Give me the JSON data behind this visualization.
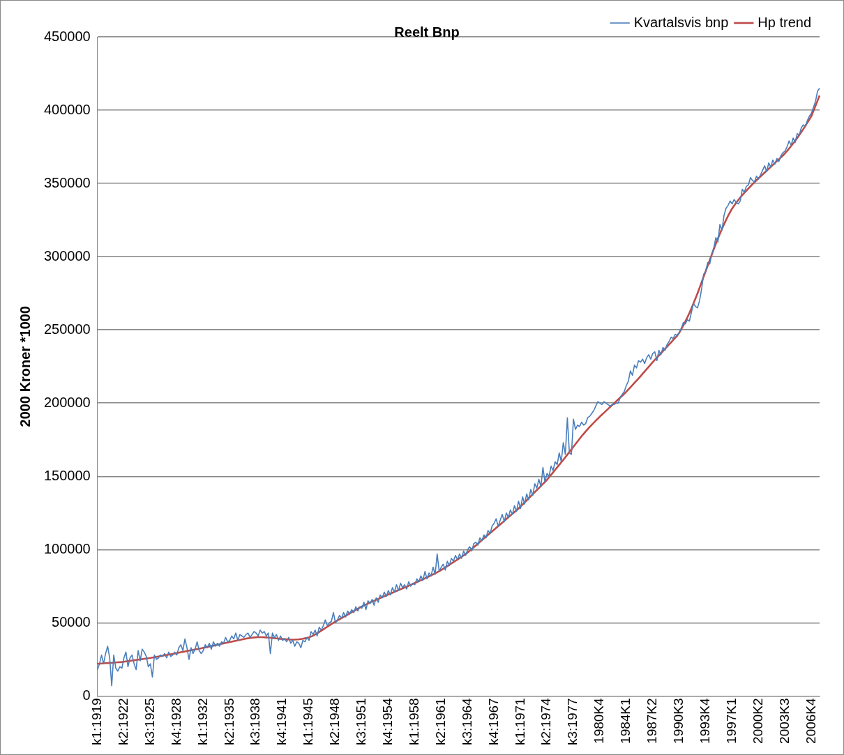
{
  "chart_data": {
    "type": "line",
    "title": "Reelt Bnp",
    "ylabel": "2000 Kroner *1000",
    "categories": [
      "k1:1919",
      null,
      null,
      null,
      null,
      null,
      null,
      null,
      null,
      null,
      null,
      null,
      null,
      "k2:1922",
      null,
      null,
      null,
      null,
      null,
      null,
      null,
      null,
      null,
      null,
      null,
      null,
      "k3:1925",
      null,
      null,
      null,
      null,
      null,
      null,
      null,
      null,
      null,
      null,
      null,
      null,
      "k4:1928",
      null,
      null,
      null,
      null,
      null,
      null,
      null,
      null,
      null,
      null,
      null,
      null,
      "k1:1932",
      null,
      null,
      null,
      null,
      null,
      null,
      null,
      null,
      null,
      null,
      null,
      null,
      "k2:1935",
      null,
      null,
      null,
      null,
      null,
      null,
      null,
      null,
      null,
      null,
      null,
      null,
      "k3:1938",
      null,
      null,
      null,
      null,
      null,
      null,
      null,
      null,
      null,
      null,
      null,
      null,
      "k4:1941",
      null,
      null,
      null,
      null,
      null,
      null,
      null,
      null,
      null,
      null,
      null,
      null,
      "k1:1945",
      null,
      null,
      null,
      null,
      null,
      null,
      null,
      null,
      null,
      null,
      null,
      null,
      "k2:1948",
      null,
      null,
      null,
      null,
      null,
      null,
      null,
      null,
      null,
      null,
      null,
      null,
      "k3:1951",
      null,
      null,
      null,
      null,
      null,
      null,
      null,
      null,
      null,
      null,
      null,
      null,
      "k4:1954",
      null,
      null,
      null,
      null,
      null,
      null,
      null,
      null,
      null,
      null,
      null,
      null,
      "k1:1958",
      null,
      null,
      null,
      null,
      null,
      null,
      null,
      null,
      null,
      null,
      null,
      null,
      "k2:1961",
      null,
      null,
      null,
      null,
      null,
      null,
      null,
      null,
      null,
      null,
      null,
      null,
      "k3:1964",
      null,
      null,
      null,
      null,
      null,
      null,
      null,
      null,
      null,
      null,
      null,
      null,
      "k4:1967",
      null,
      null,
      null,
      null,
      null,
      null,
      null,
      null,
      null,
      null,
      null,
      null,
      "k1:1971",
      null,
      null,
      null,
      null,
      null,
      null,
      null,
      null,
      null,
      null,
      null,
      null,
      "k2:1974",
      null,
      null,
      null,
      null,
      null,
      null,
      null,
      null,
      null,
      null,
      null,
      null,
      "k3:1977",
      null,
      null,
      null,
      null,
      null,
      null,
      null,
      null,
      null,
      null,
      null,
      null,
      "1980K4",
      null,
      null,
      null,
      null,
      null,
      null,
      null,
      null,
      null,
      null,
      null,
      null,
      "1984K1",
      null,
      null,
      null,
      null,
      null,
      null,
      null,
      null,
      null,
      null,
      null,
      null,
      "1987K2",
      null,
      null,
      null,
      null,
      null,
      null,
      null,
      null,
      null,
      null,
      null,
      null,
      "1990K3",
      null,
      null,
      null,
      null,
      null,
      null,
      null,
      null,
      null,
      null,
      null,
      null,
      "1993K4",
      null,
      null,
      null,
      null,
      null,
      null,
      null,
      null,
      null,
      null,
      null,
      null,
      "1997K1",
      null,
      null,
      null,
      null,
      null,
      null,
      null,
      null,
      null,
      null,
      null,
      null,
      "2000K2",
      null,
      null,
      null,
      null,
      null,
      null,
      null,
      null,
      null,
      null,
      null,
      null,
      "2003K3",
      null,
      null,
      null,
      null,
      null,
      null,
      null,
      null,
      null,
      null,
      null,
      null,
      "2006K4",
      null,
      null,
      null,
      null
    ],
    "series": [
      {
        "name": "Kvartalsvis bnp",
        "color": "#4a7ebb",
        "values": [
          18000,
          22000,
          28000,
          22000,
          29000,
          34000,
          26000,
          7000,
          28000,
          19000,
          17000,
          20000,
          19000,
          26000,
          30000,
          20000,
          26000,
          28000,
          22000,
          18000,
          31000,
          24000,
          32000,
          30000,
          27000,
          20000,
          22000,
          13000,
          28000,
          25000,
          26000,
          28000,
          27000,
          29000,
          26000,
          30000,
          27000,
          28000,
          30000,
          28000,
          33000,
          35000,
          31000,
          39000,
          33000,
          25000,
          33000,
          29000,
          32000,
          37000,
          31000,
          29000,
          31000,
          35000,
          33000,
          36000,
          32000,
          37000,
          34000,
          36000,
          34000,
          37000,
          36000,
          40000,
          37000,
          38000,
          41000,
          39000,
          43000,
          38000,
          42000,
          41000,
          40000,
          42000,
          43000,
          40000,
          42000,
          44000,
          43000,
          41000,
          45000,
          43000,
          44000,
          41000,
          43000,
          29000,
          43000,
          40000,
          42000,
          38000,
          41000,
          38000,
          39000,
          37000,
          40000,
          36000,
          38000,
          34000,
          37000,
          36000,
          33000,
          38000,
          37000,
          40000,
          38000,
          44000,
          42000,
          45000,
          41000,
          47000,
          45000,
          48000,
          52000,
          48000,
          50000,
          51000,
          57000,
          50000,
          52000,
          55000,
          53000,
          57000,
          54000,
          58000,
          56000,
          59000,
          57000,
          61000,
          58000,
          61000,
          60000,
          64000,
          59000,
          65000,
          63000,
          66000,
          62000,
          67000,
          64000,
          69000,
          67000,
          71000,
          68000,
          72000,
          69000,
          74000,
          71000,
          76000,
          72000,
          77000,
          74000,
          76000,
          73000,
          78000,
          75000,
          77000,
          76000,
          80000,
          78000,
          82000,
          79000,
          85000,
          80000,
          84000,
          82000,
          88000,
          83000,
          97000,
          85000,
          88000,
          90000,
          86000,
          92000,
          89000,
          94000,
          92000,
          96000,
          93000,
          97000,
          94000,
          99000,
          96000,
          100000,
          102000,
          99000,
          104000,
          105000,
          103000,
          108000,
          106000,
          110000,
          108000,
          113000,
          111000,
          116000,
          118000,
          121000,
          116000,
          120000,
          124000,
          119000,
          125000,
          122000,
          127000,
          124000,
          130000,
          126000,
          133000,
          128000,
          136000,
          131000,
          138000,
          134000,
          141000,
          137000,
          145000,
          142000,
          148000,
          143000,
          156000,
          146000,
          152000,
          150000,
          157000,
          154000,
          160000,
          158000,
          166000,
          160000,
          173000,
          165000,
          190000,
          166000,
          165000,
          189000,
          182000,
          185000,
          184000,
          187000,
          185000,
          186000,
          190000,
          191000,
          193000,
          195000,
          198000,
          201000,
          200000,
          199000,
          201000,
          200000,
          199000,
          198000,
          199000,
          199000,
          200000,
          200000,
          204000,
          206000,
          208000,
          212000,
          215000,
          222000,
          219000,
          226000,
          224000,
          229000,
          228000,
          230000,
          227000,
          231000,
          233000,
          230000,
          234000,
          235000,
          229000,
          236000,
          233000,
          238000,
          236000,
          240000,
          242000,
          245000,
          244000,
          247000,
          246000,
          248000,
          251000,
          255000,
          254000,
          257000,
          256000,
          262000,
          268000,
          266000,
          265000,
          270000,
          278000,
          288000,
          290000,
          296000,
          295000,
          302000,
          306000,
          313000,
          310000,
          322000,
          318000,
          328000,
          333000,
          335000,
          338000,
          336000,
          339000,
          337000,
          336000,
          338000,
          346000,
          344000,
          348000,
          349000,
          354000,
          352000,
          351000,
          355000,
          353000,
          356000,
          359000,
          362000,
          358000,
          364000,
          361000,
          366000,
          363000,
          367000,
          365000,
          369000,
          371000,
          372000,
          375000,
          379000,
          376000,
          381000,
          378000,
          384000,
          383000,
          388000,
          390000,
          389000,
          393000,
          396000,
          398000,
          402000,
          406000,
          413000,
          415000
        ]
      },
      {
        "name": "Hp trend",
        "color": "#be4b48",
        "values": [
          22000,
          22100,
          22200,
          22300,
          22400,
          22500,
          22600,
          22700,
          22800,
          22900,
          23000,
          23100,
          23200,
          23400,
          23600,
          23800,
          24000,
          24200,
          24400,
          24600,
          24800,
          25000,
          25200,
          25400,
          25600,
          25800,
          26000,
          26250,
          26500,
          26750,
          27000,
          27250,
          27500,
          27750,
          28000,
          28250,
          28500,
          28750,
          29000,
          29300,
          29600,
          29900,
          30100,
          30400,
          30700,
          31000,
          31200,
          31500,
          31800,
          32000,
          32300,
          32600,
          32900,
          33200,
          33500,
          33800,
          34100,
          34400,
          34700,
          35000,
          35300,
          35600,
          35900,
          36200,
          36500,
          36800,
          37100,
          37400,
          37700,
          38000,
          38300,
          38600,
          38900,
          39200,
          39400,
          39600,
          39800,
          40000,
          40100,
          40200,
          40200,
          40200,
          40100,
          40000,
          39900,
          39800,
          39600,
          39500,
          39300,
          39200,
          39000,
          38900,
          38800,
          38700,
          38600,
          38500,
          38500,
          38500,
          38600,
          38700,
          38900,
          39100,
          39400,
          39700,
          40100,
          40600,
          41200,
          42000,
          42800,
          43700,
          44600,
          45500,
          46400,
          47300,
          48200,
          49100,
          50000,
          50800,
          51600,
          52400,
          53200,
          54000,
          54800,
          55600,
          56400,
          57200,
          58000,
          58800,
          59600,
          60400,
          61100,
          61800,
          62500,
          63200,
          63900,
          64500,
          65100,
          65700,
          66300,
          66900,
          67500,
          68100,
          68700,
          69300,
          69900,
          70500,
          71100,
          71700,
          72300,
          72900,
          73500,
          74100,
          74700,
          75300,
          75900,
          76500,
          77200,
          77800,
          78400,
          79000,
          79600,
          80300,
          81000,
          81700,
          82400,
          83100,
          83800,
          84500,
          85200,
          86000,
          86900,
          87800,
          88700,
          89600,
          90500,
          91400,
          92300,
          93200,
          94100,
          95000,
          96000,
          97000,
          98000,
          99200,
          100400,
          101600,
          102800,
          104000,
          105200,
          106400,
          107600,
          108800,
          110000,
          111200,
          112400,
          113600,
          114800,
          116000,
          117200,
          118400,
          119600,
          120800,
          122000,
          123200,
          124400,
          125600,
          126800,
          128000,
          129400,
          130800,
          132200,
          133600,
          135000,
          136400,
          137800,
          139200,
          140600,
          142000,
          143400,
          144800,
          146200,
          147600,
          149300,
          151000,
          152700,
          154400,
          156100,
          157800,
          159500,
          161200,
          163000,
          164800,
          166600,
          168400,
          170200,
          172000,
          173800,
          175600,
          177400,
          179000,
          180600,
          182200,
          183700,
          185200,
          186600,
          188000,
          189400,
          190800,
          192100,
          193400,
          194700,
          196000,
          197300,
          198600,
          199900,
          201200,
          202500,
          203800,
          205100,
          206400,
          207800,
          209300,
          210800,
          212300,
          213800,
          215300,
          216800,
          218400,
          220000,
          221600,
          223200,
          224800,
          226400,
          228000,
          229500,
          231000,
          232500,
          234000,
          235500,
          237000,
          238500,
          240000,
          241500,
          243000,
          244500,
          246000,
          248000,
          250500,
          253000,
          255700,
          258500,
          261500,
          264700,
          268000,
          271500,
          275000,
          278700,
          282500,
          286300,
          290000,
          293800,
          297600,
          301400,
          305100,
          308800,
          312300,
          315700,
          319000,
          322000,
          325000,
          327800,
          330400,
          332800,
          334800,
          336800,
          338600,
          340400,
          342000,
          343500,
          345000,
          346500,
          348000,
          349400,
          350800,
          352200,
          353500,
          354800,
          356100,
          357400,
          358700,
          360000,
          361300,
          362600,
          363900,
          365200,
          366500,
          367800,
          369100,
          370500,
          372100,
          373800,
          375500,
          377300,
          379100,
          381000,
          383000,
          385000,
          387100,
          389300,
          391500,
          393700,
          396000,
          399500,
          403000,
          406500,
          410000
        ]
      }
    ],
    "ylim": [
      0,
      450000
    ],
    "yticks": [
      0,
      50000,
      100000,
      150000,
      200000,
      250000,
      300000,
      350000,
      400000,
      450000
    ],
    "grid": "y",
    "legend": "top right",
    "marker": "none",
    "line_style": "solid"
  }
}
